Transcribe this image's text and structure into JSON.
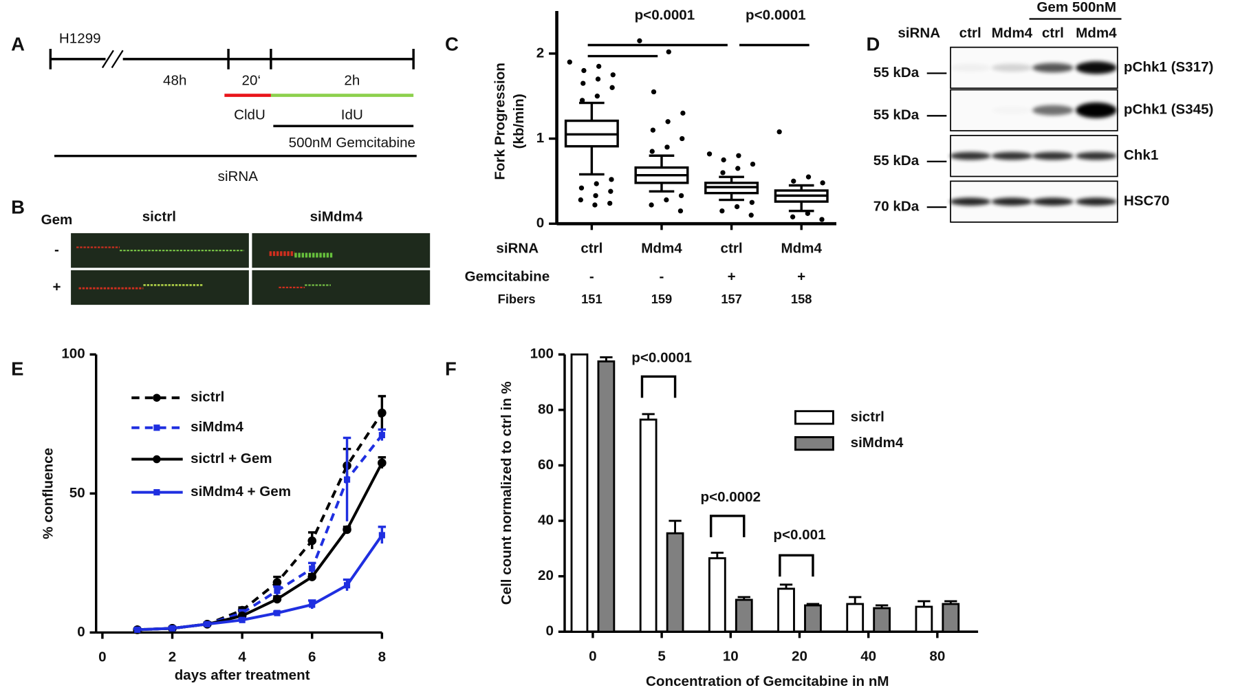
{
  "panel_labels": [
    "A",
    "B",
    "C",
    "D",
    "E",
    "F"
  ],
  "panel_a": {
    "cell_line": "H1299",
    "t1": "48h",
    "t2": "20‘",
    "t3": "2h",
    "cldu": "CldU",
    "idu": "IdU",
    "gem": "500nM Gemcitabine",
    "sirna": "siRNA"
  },
  "panel_b": {
    "gem": "Gem",
    "columns": [
      "sictrl",
      "siMdm4"
    ],
    "rows": [
      "-",
      "+"
    ]
  },
  "panel_d": {
    "sirna": "siRNA",
    "lanes": [
      "ctrl",
      "Mdm4",
      "ctrl",
      "Mdm4"
    ],
    "gem": "Gem 500nM",
    "blots": [
      {
        "name": "pChk1 (S317)",
        "kda": "55 kDa"
      },
      {
        "name": "pChk1 (S345)",
        "kda": "55 kDa"
      },
      {
        "name": "Chk1",
        "kda": "55 kDa"
      },
      {
        "name": "HSC70",
        "kda": "70 kDa"
      }
    ]
  },
  "chart_data": [
    {
      "type": "box",
      "ylabel": [
        "Fork Progression",
        "(kb/min)"
      ],
      "categories": [
        "ctrl",
        "Mdm4",
        "ctrl",
        "Mdm4"
      ],
      "row_labels": [
        "siRNA",
        "Gemcitabine",
        "Fibers"
      ],
      "gemcitabine": [
        "-",
        "-",
        "+",
        "+"
      ],
      "fibers": [
        151,
        159,
        157,
        158
      ],
      "ylim": [
        0,
        2.5
      ],
      "yticks": [
        0,
        1,
        2
      ],
      "annotations": [
        "p<0.0001",
        "p<0.0001"
      ],
      "boxes": [
        {
          "whisker_low": 0.58,
          "q1": 0.91,
          "median": 1.05,
          "q3": 1.21,
          "whisker_high": 1.42,
          "outliers": [
            1.9,
            1.85,
            1.8,
            1.75,
            1.7,
            1.65,
            1.6,
            1.5,
            1.45,
            0.52,
            0.47,
            0.42,
            0.38,
            0.33,
            0.28,
            0.24,
            0.22
          ]
        },
        {
          "whisker_low": 0.38,
          "q1": 0.48,
          "median": 0.57,
          "q3": 0.66,
          "whisker_high": 0.8,
          "outliers": [
            2.15,
            2.02,
            1.55,
            1.3,
            1.2,
            1.1,
            1.0,
            0.9,
            0.85,
            0.33,
            0.28,
            0.22,
            0.15
          ]
        },
        {
          "whisker_low": 0.28,
          "q1": 0.36,
          "median": 0.43,
          "q3": 0.48,
          "whisker_high": 0.55,
          "outliers": [
            0.82,
            0.8,
            0.75,
            0.7,
            0.65,
            0.6,
            0.25,
            0.2,
            0.15,
            0.1
          ]
        },
        {
          "whisker_low": 0.15,
          "q1": 0.26,
          "median": 0.33,
          "q3": 0.39,
          "whisker_high": 0.45,
          "outliers": [
            1.08,
            0.55,
            0.5,
            0.48,
            0.12,
            0.08,
            0.05
          ]
        }
      ]
    },
    {
      "type": "line",
      "xlabel": "days after treatment",
      "ylabel": "% confluence",
      "x": [
        1,
        2,
        3,
        4,
        5,
        6,
        7,
        8
      ],
      "xlim": [
        0,
        8
      ],
      "xticks": [
        0,
        2,
        4,
        6,
        8
      ],
      "ylim": [
        0,
        100
      ],
      "yticks": [
        0,
        50,
        100
      ],
      "series": [
        {
          "name": "sictrl",
          "color": "#000000",
          "dashed": true,
          "marker": "circle",
          "values": [
            1,
            1.5,
            3,
            8,
            18,
            33,
            60,
            79
          ],
          "errors": [
            0.3,
            0.5,
            0.5,
            1,
            2,
            3,
            6,
            6
          ]
        },
        {
          "name": "siMdm4",
          "color": "#1f2fe0",
          "dashed": true,
          "marker": "square",
          "values": [
            1,
            1.5,
            3,
            7,
            15,
            23,
            55,
            71
          ],
          "errors": [
            0.3,
            0.5,
            0.5,
            1,
            1.5,
            2,
            15,
            2
          ]
        },
        {
          "name": "sictrl + Gem",
          "color": "#000000",
          "dashed": false,
          "marker": "circle",
          "values": [
            1,
            1.5,
            3,
            6,
            12,
            20,
            37,
            61
          ],
          "errors": [
            0.3,
            0.3,
            0.5,
            0.5,
            1,
            1,
            1,
            2
          ]
        },
        {
          "name": "siMdm4 + Gem",
          "color": "#1f2fe0",
          "dashed": false,
          "marker": "square",
          "values": [
            1,
            1.5,
            3,
            4.5,
            7,
            10,
            17,
            35
          ],
          "errors": [
            0.3,
            0.3,
            0.3,
            0.5,
            0.5,
            1.5,
            2,
            3
          ]
        }
      ]
    },
    {
      "type": "bar",
      "xlabel": "Concentration of Gemcitabine in nM",
      "ylabel": "Cell count normalized to ctrl in %",
      "categories": [
        "0",
        "5",
        "10",
        "20",
        "40",
        "80"
      ],
      "ylim": [
        0,
        100
      ],
      "yticks": [
        0,
        20,
        40,
        60,
        80,
        100
      ],
      "annotations": [
        "p<0.0001",
        "p<0.0002",
        "p<0.001"
      ],
      "series": [
        {
          "name": "sictrl",
          "color": "#ffffff",
          "values": [
            100,
            76.5,
            26.5,
            15.5,
            10,
            9
          ],
          "errors": [
            0,
            2,
            2,
            1.5,
            2.5,
            2
          ]
        },
        {
          "name": "siMdm4",
          "color": "#808080",
          "values": [
            97.5,
            35.5,
            11.5,
            9.5,
            8.5,
            10
          ],
          "errors": [
            1.5,
            4.5,
            1,
            0.5,
            1,
            1
          ]
        }
      ]
    }
  ]
}
